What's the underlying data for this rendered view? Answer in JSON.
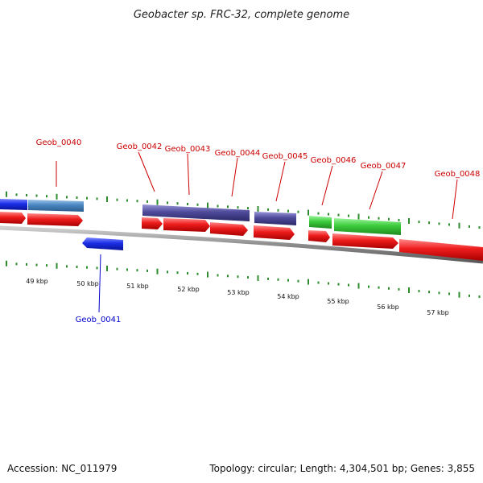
{
  "title": "Geobacter sp. FRC-32, complete genome",
  "footer": {
    "accession": "Accession: NC_011979",
    "summary": "Topology: circular; Length: 4,304,501 bp; Genes: 3,855"
  },
  "colors": {
    "backbone": "#8c8c8c",
    "tick": "#2e8b2e",
    "red_gene": "#ee1c1c",
    "blue_gene": "#1a2ee6",
    "steelblue_gene": "#4a86c0",
    "purple_gene": "#4e4a9a",
    "green_gene": "#3ccc3c",
    "label_red": "#cc0000",
    "label_blue": "#0000cc"
  },
  "kbp_labels": [
    "49 kbp",
    "50 kbp",
    "51 kbp",
    "52 kbp",
    "53 kbp",
    "54 kbp",
    "55 kbp",
    "56 kbp",
    "57 kbp"
  ],
  "gene_labels": [
    {
      "id": "Geob_0040",
      "color": "red"
    },
    {
      "id": "Geob_0041",
      "color": "blue"
    },
    {
      "id": "Geob_0042",
      "color": "red"
    },
    {
      "id": "Geob_0043",
      "color": "red"
    },
    {
      "id": "Geob_0044",
      "color": "red"
    },
    {
      "id": "Geob_0045",
      "color": "red"
    },
    {
      "id": "Geob_0046",
      "color": "red"
    },
    {
      "id": "Geob_0047",
      "color": "red"
    },
    {
      "id": "Geob_0048",
      "color": "red"
    }
  ]
}
